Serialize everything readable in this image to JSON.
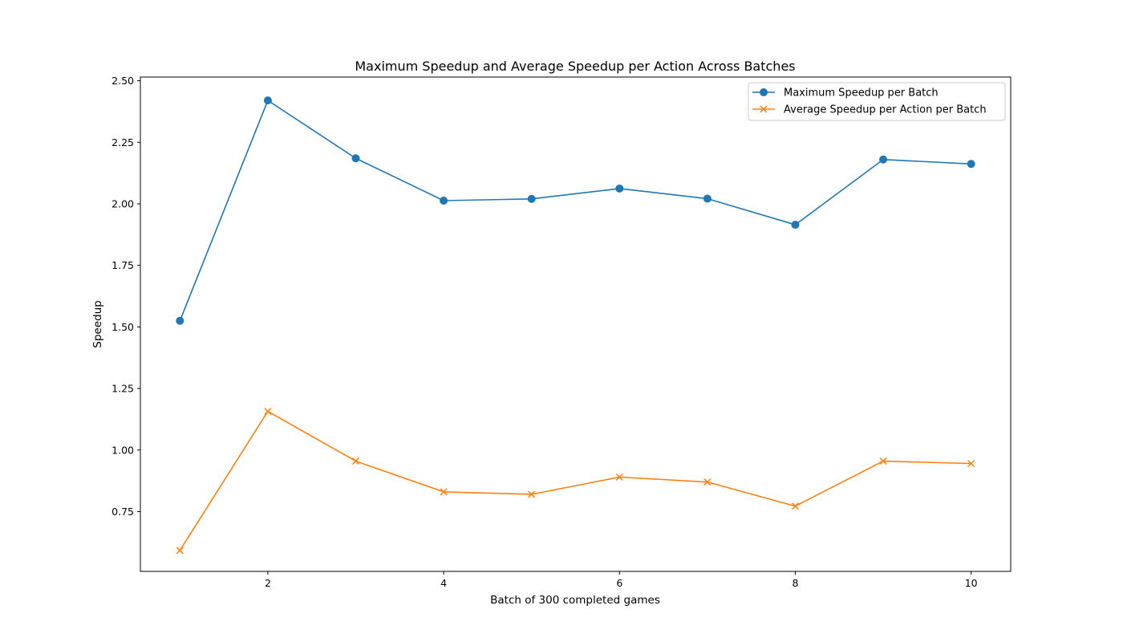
{
  "chart_data": {
    "type": "line",
    "title": "Maximum Speedup and Average Speedup per Action Across Batches",
    "xlabel": "Batch of 300 completed games",
    "ylabel": "Speedup",
    "x": [
      1,
      2,
      3,
      4,
      5,
      6,
      7,
      8,
      9,
      10
    ],
    "xlim": [
      0.55,
      10.45
    ],
    "ylim": [
      0.507,
      2.515
    ],
    "xticks": [
      2,
      4,
      6,
      8,
      10
    ],
    "xtick_labels": [
      "2",
      "4",
      "6",
      "8",
      "10"
    ],
    "yticks": [
      0.75,
      1.0,
      1.25,
      1.5,
      1.75,
      2.0,
      2.25,
      2.5
    ],
    "ytick_labels": [
      "0.75",
      "1.00",
      "1.25",
      "1.50",
      "1.75",
      "2.00",
      "2.25",
      "2.50"
    ],
    "grid": false,
    "legend_position": "top-right",
    "series": [
      {
        "name": "Maximum Speedup per Batch",
        "values": [
          1.525,
          2.42,
          2.185,
          2.013,
          2.02,
          2.062,
          2.021,
          1.915,
          2.18,
          2.162
        ],
        "color": "#1f77b4",
        "marker": "circle"
      },
      {
        "name": "Average Speedup per Action per Batch",
        "values": [
          0.592,
          1.157,
          0.955,
          0.83,
          0.82,
          0.89,
          0.87,
          0.772,
          0.955,
          0.945
        ],
        "color": "#ff7f0e",
        "marker": "x"
      }
    ]
  }
}
